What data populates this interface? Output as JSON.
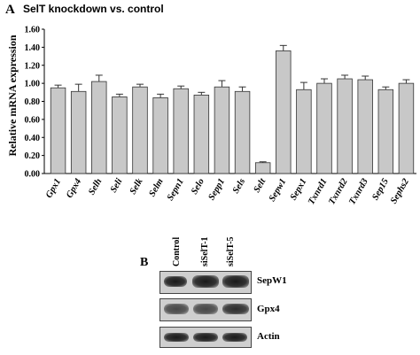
{
  "panel_a": {
    "letter": "A",
    "title": "SelT knockdown vs. control"
  },
  "chart_data": {
    "type": "bar",
    "title": "SelT knockdown vs. control",
    "xlabel": "",
    "ylabel": "Relative mRNA expression",
    "ylim": [
      0,
      1.6
    ],
    "yticks": [
      "0.00",
      "0.20",
      "0.40",
      "0.60",
      "0.80",
      "1.00",
      "1.20",
      "1.40",
      "1.60"
    ],
    "categories": [
      "Gpx1",
      "Gpx4",
      "Selh",
      "Seli",
      "Selk",
      "Selm",
      "Sepn1",
      "Selo",
      "Sepp1",
      "Sels",
      "Selt",
      "Sepw1",
      "Sepx1",
      "Txnrd1",
      "Txnrd2",
      "Txnrd3",
      "Sep15",
      "Sephs2"
    ],
    "values": [
      0.95,
      0.91,
      1.02,
      0.85,
      0.96,
      0.84,
      0.94,
      0.87,
      0.96,
      0.91,
      0.12,
      1.36,
      0.93,
      1.0,
      1.05,
      1.04,
      0.93,
      1.0
    ],
    "errors": [
      0.03,
      0.08,
      0.07,
      0.03,
      0.03,
      0.04,
      0.03,
      0.03,
      0.07,
      0.05,
      0.01,
      0.06,
      0.08,
      0.05,
      0.04,
      0.04,
      0.03,
      0.04
    ],
    "bar_color": "#c8c8c8",
    "grid": false
  },
  "panel_b": {
    "letter": "B",
    "lanes": [
      "Control",
      "siSelT-1",
      "siSelT-5"
    ],
    "blots": [
      {
        "label": "SepW1",
        "intensity": [
          0.55,
          0.95,
          1.0
        ]
      },
      {
        "label": "Gpx4",
        "intensity": [
          0.6,
          0.6,
          0.8
        ]
      },
      {
        "label": "Actin",
        "intensity": [
          0.9,
          0.9,
          0.9
        ]
      }
    ]
  }
}
